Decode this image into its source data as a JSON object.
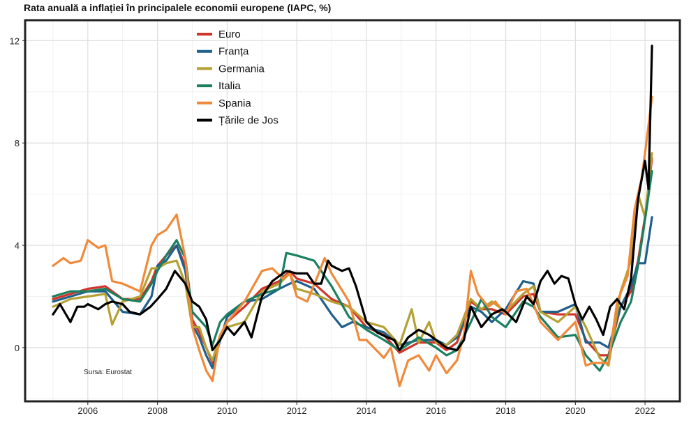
{
  "chart_data": {
    "type": "line",
    "title": "Rata anuală a inflației în principalele economii europene (IAPC, %)",
    "xlabel": "",
    "ylabel": "",
    "source": "Sursa: Eurostat",
    "xlim": [
      2004.2,
      2023.0
    ],
    "ylim": [
      -2.1,
      12.8
    ],
    "xticks": [
      2006,
      2008,
      2010,
      2012,
      2014,
      2016,
      2018,
      2020,
      2022
    ],
    "yticks": [
      0,
      4,
      8,
      12
    ],
    "legend_position": "top-center",
    "series": [
      {
        "name": "Euro",
        "color": "#d1342b",
        "x": [
          2005.0,
          2005.5,
          2006.0,
          2006.5,
          2007.0,
          2007.5,
          2007.83,
          2008.0,
          2008.25,
          2008.55,
          2008.8,
          2009.0,
          2009.2,
          2009.4,
          2009.58,
          2009.8,
          2010.0,
          2010.5,
          2011.0,
          2011.5,
          2011.8,
          2012.0,
          2012.5,
          2013.0,
          2013.5,
          2014.0,
          2014.5,
          2014.95,
          2015.5,
          2016.0,
          2016.3,
          2016.6,
          2017.0,
          2017.3,
          2017.6,
          2018.0,
          2018.5,
          2018.8,
          2019.0,
          2019.5,
          2020.0,
          2020.3,
          2020.7,
          2020.95,
          2021.3,
          2021.6,
          2021.8,
          2022.0,
          2022.2
        ],
        "y": [
          1.9,
          2.1,
          2.3,
          2.4,
          1.9,
          1.9,
          2.6,
          3.2,
          3.6,
          4.0,
          3.2,
          1.1,
          0.6,
          0.0,
          -0.6,
          0.3,
          1.0,
          1.6,
          2.3,
          2.6,
          3.0,
          2.7,
          2.5,
          1.9,
          1.6,
          0.8,
          0.5,
          -0.2,
          0.2,
          0.2,
          -0.1,
          0.2,
          1.8,
          1.5,
          1.5,
          1.3,
          2.0,
          2.1,
          1.4,
          1.3,
          1.3,
          0.3,
          -0.3,
          -0.3,
          1.6,
          2.2,
          3.4,
          5.1,
          7.4
        ]
      },
      {
        "name": "Franța",
        "color": "#1f5f8b",
        "x": [
          2005.0,
          2005.5,
          2006.0,
          2006.5,
          2007.0,
          2007.5,
          2007.83,
          2008.0,
          2008.25,
          2008.55,
          2008.8,
          2009.0,
          2009.2,
          2009.4,
          2009.58,
          2009.8,
          2010.0,
          2010.5,
          2011.0,
          2011.5,
          2011.8,
          2012.0,
          2012.5,
          2013.0,
          2013.3,
          2013.6,
          2014.0,
          2014.5,
          2014.95,
          2015.5,
          2016.0,
          2016.3,
          2016.6,
          2017.0,
          2017.3,
          2017.6,
          2018.0,
          2018.5,
          2018.8,
          2019.0,
          2019.5,
          2020.0,
          2020.3,
          2020.7,
          2020.95,
          2021.3,
          2021.6,
          2021.8,
          2022.0,
          2022.2
        ],
        "y": [
          1.8,
          2.0,
          2.2,
          2.2,
          1.4,
          1.3,
          2.0,
          3.2,
          3.4,
          4.0,
          3.0,
          0.9,
          0.4,
          -0.3,
          -0.8,
          0.3,
          1.2,
          1.8,
          1.9,
          2.3,
          2.5,
          2.6,
          2.3,
          1.3,
          0.8,
          1.0,
          0.8,
          0.6,
          0.1,
          0.3,
          0.3,
          0.1,
          0.4,
          1.6,
          1.4,
          1.0,
          1.5,
          2.6,
          2.5,
          1.4,
          1.4,
          1.7,
          0.2,
          0.2,
          0.0,
          1.6,
          2.4,
          3.3,
          3.3,
          5.1
        ]
      },
      {
        "name": "Germania",
        "color": "#b5a033",
        "x": [
          2005.0,
          2005.5,
          2006.0,
          2006.5,
          2006.7,
          2007.0,
          2007.5,
          2007.83,
          2008.0,
          2008.25,
          2008.55,
          2008.8,
          2009.0,
          2009.2,
          2009.4,
          2009.58,
          2009.8,
          2010.0,
          2010.5,
          2011.0,
          2011.5,
          2011.8,
          2012.0,
          2012.5,
          2013.0,
          2013.5,
          2014.0,
          2014.5,
          2014.95,
          2015.3,
          2015.5,
          2015.8,
          2016.0,
          2016.3,
          2016.6,
          2017.0,
          2017.3,
          2017.6,
          2018.0,
          2018.5,
          2018.8,
          2019.0,
          2019.5,
          2020.0,
          2020.3,
          2020.7,
          2020.95,
          2021.3,
          2021.6,
          2021.8,
          2022.0,
          2022.2
        ],
        "y": [
          1.6,
          1.9,
          2.0,
          2.1,
          0.9,
          1.8,
          2.0,
          3.1,
          3.1,
          3.3,
          3.4,
          2.5,
          0.8,
          0.8,
          0.0,
          -0.5,
          0.5,
          0.8,
          1.0,
          2.2,
          2.5,
          2.9,
          2.3,
          2.1,
          1.8,
          1.6,
          1.0,
          0.8,
          0.1,
          1.5,
          0.2,
          1.0,
          0.2,
          0.1,
          0.5,
          1.9,
          1.5,
          1.8,
          1.4,
          2.1,
          2.4,
          1.4,
          1.0,
          1.6,
          0.8,
          -0.4,
          -0.7,
          2.2,
          3.4,
          6.0,
          5.1,
          7.6
        ]
      },
      {
        "name": "Italia",
        "color": "#1a8060",
        "x": [
          2005.0,
          2005.5,
          2006.0,
          2006.5,
          2007.0,
          2007.5,
          2007.83,
          2008.0,
          2008.25,
          2008.55,
          2008.8,
          2009.0,
          2009.2,
          2009.4,
          2009.58,
          2009.8,
          2010.0,
          2010.5,
          2011.0,
          2011.5,
          2011.7,
          2012.0,
          2012.5,
          2013.0,
          2013.5,
          2014.0,
          2014.5,
          2014.95,
          2015.5,
          2016.0,
          2016.3,
          2016.6,
          2017.0,
          2017.3,
          2017.6,
          2018.0,
          2018.5,
          2018.8,
          2019.0,
          2019.5,
          2020.0,
          2020.3,
          2020.7,
          2020.95,
          2021.3,
          2021.6,
          2021.8,
          2022.0,
          2022.2
        ],
        "y": [
          2.0,
          2.2,
          2.2,
          2.3,
          1.9,
          1.8,
          2.5,
          3.0,
          3.6,
          4.2,
          3.5,
          1.4,
          1.1,
          0.8,
          0.1,
          1.0,
          1.3,
          1.8,
          2.1,
          2.3,
          3.7,
          3.6,
          3.4,
          2.4,
          1.2,
          0.7,
          0.3,
          -0.1,
          0.4,
          0.0,
          -0.3,
          -0.1,
          1.0,
          1.9,
          1.2,
          0.8,
          1.8,
          1.6,
          1.2,
          0.4,
          0.5,
          -0.3,
          -0.9,
          -0.3,
          1.0,
          1.8,
          3.2,
          5.0,
          6.9
        ]
      },
      {
        "name": "Spania",
        "color": "#f08a3a",
        "x": [
          2005.0,
          2005.3,
          2005.5,
          2005.8,
          2006.0,
          2006.3,
          2006.5,
          2006.7,
          2007.0,
          2007.5,
          2007.83,
          2008.0,
          2008.25,
          2008.55,
          2008.8,
          2009.0,
          2009.2,
          2009.4,
          2009.58,
          2009.8,
          2010.0,
          2010.5,
          2011.0,
          2011.3,
          2011.6,
          2011.8,
          2012.0,
          2012.3,
          2012.6,
          2012.8,
          2013.0,
          2013.5,
          2013.8,
          2014.0,
          2014.5,
          2014.7,
          2014.95,
          2015.2,
          2015.5,
          2015.8,
          2016.0,
          2016.3,
          2016.6,
          2016.8,
          2017.0,
          2017.2,
          2017.5,
          2017.7,
          2018.0,
          2018.3,
          2018.6,
          2018.8,
          2019.0,
          2019.5,
          2020.0,
          2020.3,
          2020.5,
          2020.7,
          2020.95,
          2021.2,
          2021.5,
          2021.7,
          2021.9,
          2022.0,
          2022.2
        ],
        "y": [
          3.2,
          3.5,
          3.3,
          3.4,
          4.2,
          3.9,
          4.0,
          2.6,
          2.5,
          2.2,
          4.0,
          4.4,
          4.6,
          5.2,
          3.5,
          0.8,
          -0.1,
          -0.9,
          -1.3,
          0.5,
          1.0,
          1.8,
          3.0,
          3.1,
          2.7,
          2.9,
          2.0,
          1.8,
          2.8,
          3.5,
          2.9,
          1.8,
          0.3,
          0.3,
          -0.4,
          0.0,
          -1.5,
          -0.5,
          -0.3,
          -0.9,
          -0.3,
          -1.0,
          -0.5,
          0.5,
          3.0,
          2.1,
          1.6,
          1.8,
          1.3,
          2.2,
          2.3,
          1.7,
          1.0,
          0.3,
          1.0,
          -0.7,
          -0.6,
          -0.6,
          -0.6,
          1.8,
          2.8,
          5.4,
          6.6,
          7.6,
          9.8
        ]
      },
      {
        "name": "Țările de Jos",
        "color": "#000000",
        "x": [
          2005.0,
          2005.2,
          2005.5,
          2005.7,
          2005.9,
          2006.0,
          2006.3,
          2006.5,
          2006.7,
          2007.0,
          2007.2,
          2007.5,
          2007.8,
          2008.0,
          2008.25,
          2008.5,
          2008.8,
          2009.0,
          2009.2,
          2009.4,
          2009.58,
          2009.8,
          2010.0,
          2010.2,
          2010.5,
          2010.7,
          2011.0,
          2011.3,
          2011.5,
          2011.7,
          2012.0,
          2012.3,
          2012.5,
          2012.7,
          2012.9,
          2013.0,
          2013.3,
          2013.5,
          2013.7,
          2014.0,
          2014.3,
          2014.6,
          2014.8,
          2014.95,
          2015.2,
          2015.5,
          2015.8,
          2016.0,
          2016.3,
          2016.6,
          2016.8,
          2017.0,
          2017.3,
          2017.6,
          2017.9,
          2018.0,
          2018.3,
          2018.6,
          2018.8,
          2019.0,
          2019.2,
          2019.4,
          2019.6,
          2019.8,
          2020.0,
          2020.2,
          2020.4,
          2020.6,
          2020.8,
          2021.0,
          2021.2,
          2021.4,
          2021.6,
          2021.8,
          2022.0,
          2022.1,
          2022.2
        ],
        "y": [
          1.3,
          1.7,
          1.0,
          1.6,
          1.6,
          1.7,
          1.5,
          1.7,
          1.8,
          1.7,
          1.4,
          1.3,
          1.6,
          1.9,
          2.3,
          3.0,
          2.5,
          1.8,
          1.6,
          1.1,
          -0.1,
          0.3,
          0.8,
          0.5,
          1.0,
          0.4,
          2.0,
          2.6,
          2.8,
          3.0,
          2.9,
          2.9,
          2.5,
          2.5,
          3.4,
          3.2,
          3.0,
          3.1,
          2.4,
          1.0,
          0.6,
          0.4,
          0.3,
          -0.1,
          0.4,
          0.7,
          0.5,
          0.3,
          0.0,
          -0.1,
          0.3,
          1.6,
          0.8,
          1.3,
          1.5,
          1.4,
          1.0,
          2.0,
          1.7,
          2.6,
          3.0,
          2.5,
          2.8,
          2.7,
          1.7,
          1.1,
          1.6,
          1.1,
          0.5,
          1.6,
          1.9,
          1.5,
          2.7,
          5.8,
          7.3,
          6.2,
          11.8
        ]
      }
    ]
  }
}
